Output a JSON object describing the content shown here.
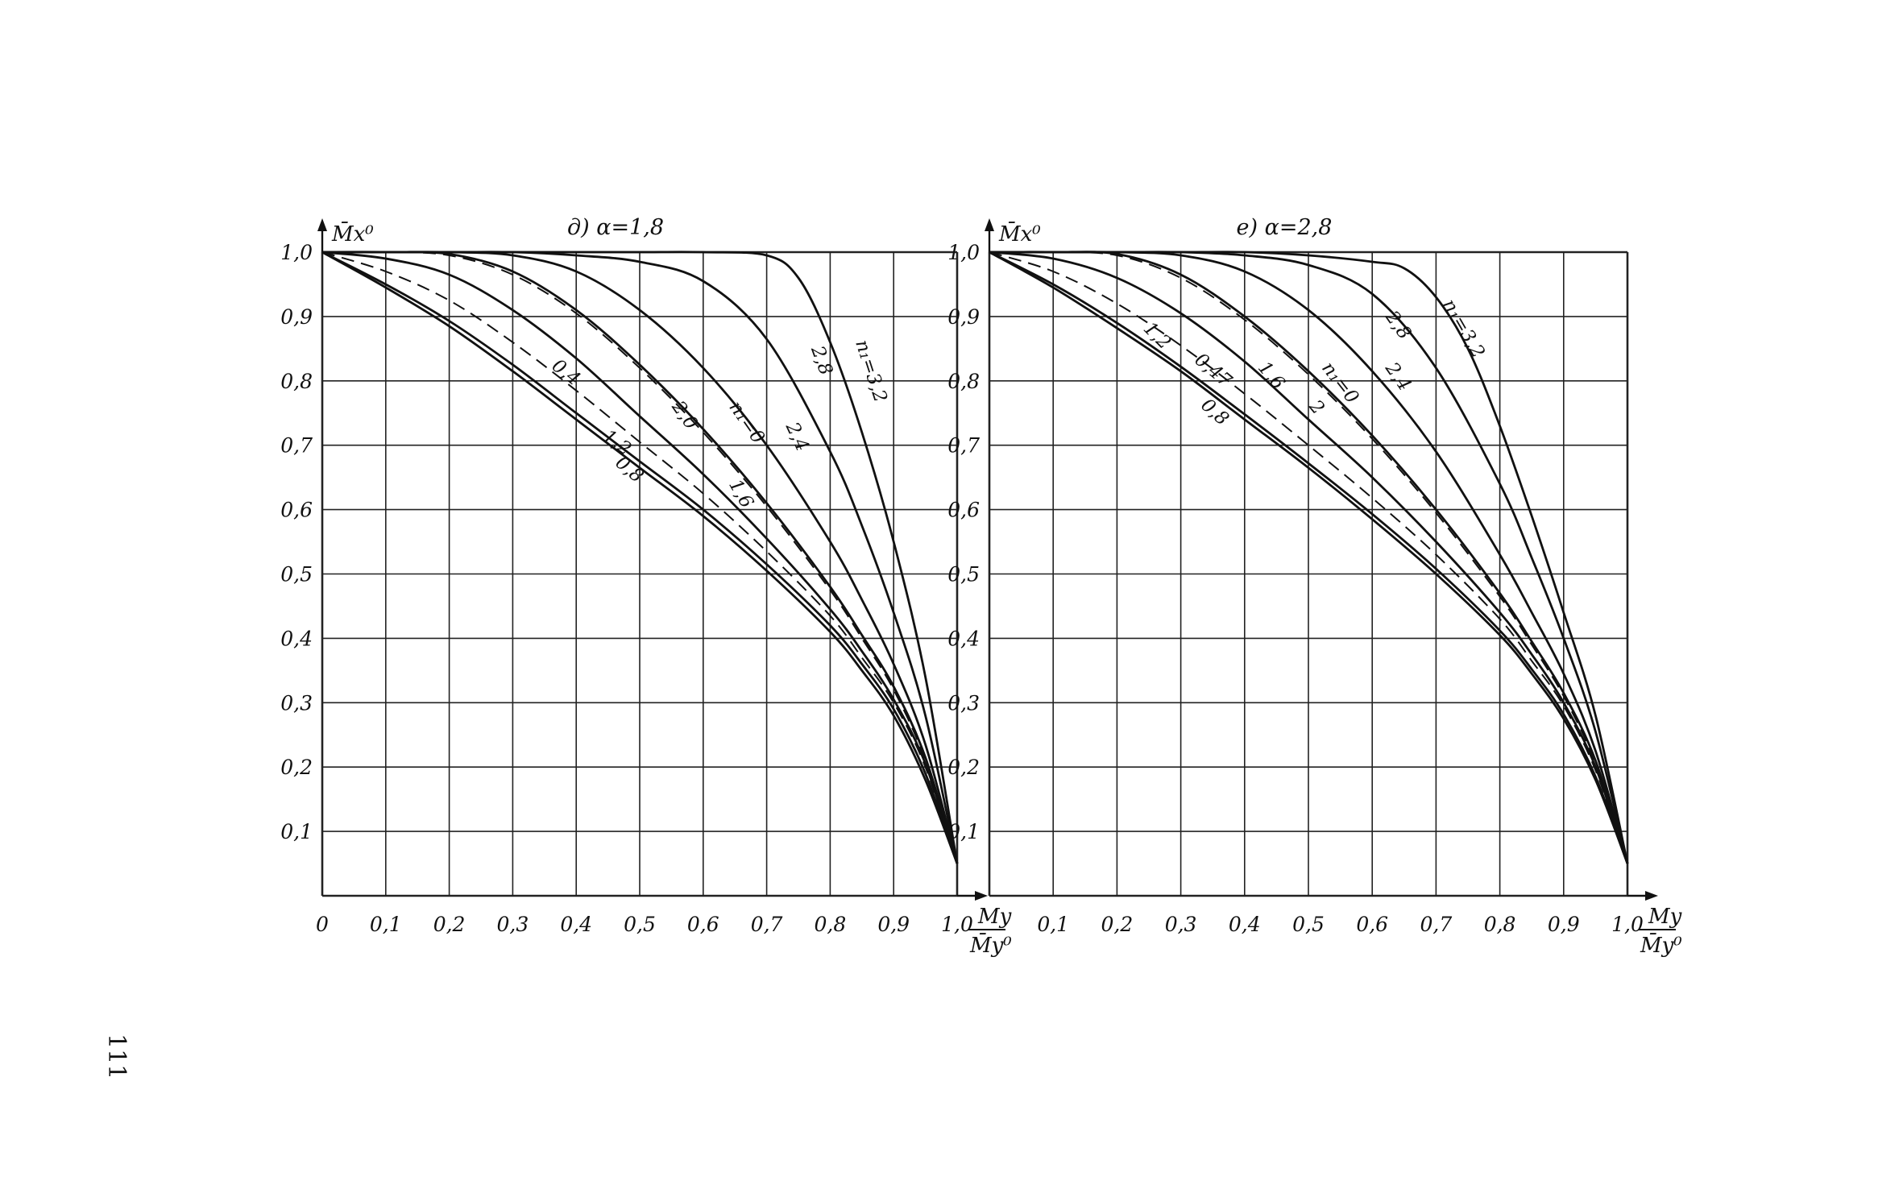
{
  "page_number": "111",
  "chart_data": [
    {
      "type": "line",
      "title": "д) α=1,8",
      "ylabel": "M̄x⁰",
      "xlabel_num": "My",
      "xlabel_den": "M̄y⁰",
      "xlim": [
        0,
        1.0
      ],
      "ylim": [
        0,
        1.0
      ],
      "grid": true,
      "x_ticks": [
        "0",
        "0,1",
        "0,2",
        "0,3",
        "0,4",
        "0,5",
        "0,6",
        "0,7",
        "0,8",
        "0,9",
        "1,0"
      ],
      "y_ticks": [
        "1,0",
        "0,9",
        "0,8",
        "0,7",
        "0,6",
        "0,5",
        "0,4",
        "0,3",
        "0,2",
        "0,1"
      ],
      "series": [
        {
          "name": "0,8",
          "dashed": false,
          "x": [
            0,
            0.1,
            0.2,
            0.3,
            0.4,
            0.5,
            0.6,
            0.7,
            0.8,
            0.85,
            0.9,
            0.95,
            1.0
          ],
          "y": [
            1.0,
            0.945,
            0.885,
            0.815,
            0.74,
            0.665,
            0.59,
            0.505,
            0.41,
            0.35,
            0.28,
            0.18,
            0.05
          ]
        },
        {
          "name": "1,2",
          "dashed": false,
          "x": [
            0,
            0.1,
            0.2,
            0.3,
            0.4,
            0.5,
            0.6,
            0.7,
            0.8,
            0.85,
            0.9,
            0.95,
            1.0
          ],
          "y": [
            1.0,
            0.95,
            0.893,
            0.825,
            0.75,
            0.675,
            0.6,
            0.515,
            0.42,
            0.36,
            0.29,
            0.19,
            0.05
          ]
        },
        {
          "name": "0,4",
          "dashed": true,
          "x": [
            0,
            0.1,
            0.2,
            0.3,
            0.4,
            0.5,
            0.6,
            0.7,
            0.8,
            0.85,
            0.9,
            0.95,
            1.0
          ],
          "y": [
            1.0,
            0.97,
            0.925,
            0.86,
            0.785,
            0.705,
            0.625,
            0.535,
            0.435,
            0.37,
            0.3,
            0.2,
            0.05
          ]
        },
        {
          "name": "1,6",
          "dashed": false,
          "x": [
            0,
            0.1,
            0.2,
            0.3,
            0.4,
            0.5,
            0.6,
            0.7,
            0.8,
            0.85,
            0.9,
            0.95,
            1.0
          ],
          "y": [
            1.0,
            0.99,
            0.965,
            0.91,
            0.835,
            0.745,
            0.655,
            0.555,
            0.445,
            0.38,
            0.305,
            0.205,
            0.05
          ]
        },
        {
          "name": "2,0",
          "dashed": true,
          "x": [
            0,
            0.1,
            0.2,
            0.3,
            0.4,
            0.5,
            0.6,
            0.7,
            0.8,
            0.85,
            0.9,
            0.95,
            1.0
          ],
          "y": [
            1.0,
            1.0,
            0.995,
            0.965,
            0.905,
            0.82,
            0.72,
            0.605,
            0.475,
            0.4,
            0.32,
            0.21,
            0.05
          ]
        },
        {
          "name": "n₁=0",
          "dashed": false,
          "x": [
            0,
            0.1,
            0.2,
            0.3,
            0.4,
            0.5,
            0.6,
            0.7,
            0.8,
            0.85,
            0.9,
            0.95,
            1.0
          ],
          "y": [
            1.0,
            1.0,
            0.997,
            0.97,
            0.91,
            0.825,
            0.725,
            0.61,
            0.48,
            0.405,
            0.325,
            0.215,
            0.05
          ]
        },
        {
          "name": "2,4",
          "dashed": false,
          "x": [
            0,
            0.1,
            0.2,
            0.3,
            0.4,
            0.5,
            0.6,
            0.7,
            0.8,
            0.85,
            0.9,
            0.95,
            1.0
          ],
          "y": [
            1.0,
            1.0,
            1.0,
            0.995,
            0.97,
            0.91,
            0.82,
            0.7,
            0.55,
            0.46,
            0.36,
            0.235,
            0.05
          ]
        },
        {
          "name": "2,8",
          "dashed": false,
          "x": [
            0,
            0.1,
            0.2,
            0.3,
            0.4,
            0.5,
            0.6,
            0.7,
            0.8,
            0.85,
            0.9,
            0.95,
            1.0
          ],
          "y": [
            1.0,
            1.0,
            1.0,
            1.0,
            0.995,
            0.985,
            0.955,
            0.865,
            0.69,
            0.575,
            0.44,
            0.28,
            0.05
          ]
        },
        {
          "name": "n₁=3,2",
          "dashed": false,
          "x": [
            0,
            0.1,
            0.2,
            0.3,
            0.4,
            0.5,
            0.6,
            0.7,
            0.75,
            0.8,
            0.85,
            0.9,
            0.95,
            1.0
          ],
          "y": [
            1.0,
            1.0,
            1.0,
            1.0,
            1.0,
            1.0,
            1.0,
            0.995,
            0.96,
            0.86,
            0.72,
            0.55,
            0.34,
            0.05
          ]
        }
      ],
      "annotations": [
        "0,4",
        "0,8",
        "1,2",
        "1,6",
        "2,0",
        "n₁=0",
        "2,4",
        "2,8",
        "n₁=3,2"
      ]
    },
    {
      "type": "line",
      "title": "е) α=2,8",
      "ylabel": "M̄x⁰",
      "xlabel_num": "My",
      "xlabel_den": "M̄y⁰",
      "xlim": [
        0,
        1.0
      ],
      "ylim": [
        0,
        1.0
      ],
      "grid": true,
      "x_ticks": [
        "0,1",
        "0,2",
        "0,3",
        "0,4",
        "0,5",
        "0,6",
        "0,7",
        "0,8",
        "0,9",
        "1,0"
      ],
      "y_ticks": [
        "1,0",
        "0,9",
        "0,8",
        "0,7",
        "0,6",
        "0,5",
        "0,4",
        "0,3",
        "0,2",
        "0,1"
      ],
      "series": [
        {
          "name": "0,8",
          "dashed": false,
          "x": [
            0,
            0.1,
            0.2,
            0.3,
            0.4,
            0.5,
            0.6,
            0.7,
            0.8,
            0.85,
            0.9,
            0.95,
            1.0
          ],
          "y": [
            1.0,
            0.945,
            0.882,
            0.815,
            0.74,
            0.665,
            0.585,
            0.5,
            0.405,
            0.345,
            0.275,
            0.18,
            0.05
          ]
        },
        {
          "name": "1,2",
          "dashed": false,
          "x": [
            0,
            0.1,
            0.2,
            0.3,
            0.4,
            0.5,
            0.6,
            0.7,
            0.8,
            0.85,
            0.9,
            0.95,
            1.0
          ],
          "y": [
            1.0,
            0.95,
            0.89,
            0.822,
            0.748,
            0.672,
            0.593,
            0.508,
            0.412,
            0.352,
            0.282,
            0.185,
            0.05
          ]
        },
        {
          "name": "0,47",
          "dashed": true,
          "x": [
            0,
            0.1,
            0.2,
            0.3,
            0.4,
            0.5,
            0.6,
            0.7,
            0.8,
            0.85,
            0.9,
            0.95,
            1.0
          ],
          "y": [
            1.0,
            0.97,
            0.92,
            0.855,
            0.78,
            0.7,
            0.618,
            0.53,
            0.43,
            0.365,
            0.295,
            0.195,
            0.05
          ]
        },
        {
          "name": "1,6",
          "dashed": false,
          "x": [
            0,
            0.1,
            0.2,
            0.3,
            0.4,
            0.5,
            0.6,
            0.7,
            0.8,
            0.85,
            0.9,
            0.95,
            1.0
          ],
          "y": [
            1.0,
            0.99,
            0.96,
            0.905,
            0.83,
            0.74,
            0.65,
            0.55,
            0.44,
            0.375,
            0.3,
            0.2,
            0.05
          ]
        },
        {
          "name": "2",
          "dashed": true,
          "x": [
            0,
            0.1,
            0.2,
            0.3,
            0.4,
            0.5,
            0.6,
            0.7,
            0.8,
            0.85,
            0.9,
            0.95,
            1.0
          ],
          "y": [
            1.0,
            1.0,
            0.995,
            0.96,
            0.895,
            0.81,
            0.71,
            0.595,
            0.465,
            0.39,
            0.31,
            0.205,
            0.05
          ]
        },
        {
          "name": "n₁=0",
          "dashed": false,
          "x": [
            0,
            0.1,
            0.2,
            0.3,
            0.4,
            0.5,
            0.6,
            0.7,
            0.8,
            0.85,
            0.9,
            0.95,
            1.0
          ],
          "y": [
            1.0,
            1.0,
            0.997,
            0.965,
            0.9,
            0.815,
            0.715,
            0.6,
            0.47,
            0.395,
            0.315,
            0.21,
            0.05
          ]
        },
        {
          "name": "2,4",
          "dashed": false,
          "x": [
            0,
            0.1,
            0.2,
            0.3,
            0.4,
            0.5,
            0.6,
            0.7,
            0.8,
            0.85,
            0.9,
            0.95,
            1.0
          ],
          "y": [
            1.0,
            1.0,
            1.0,
            0.995,
            0.97,
            0.91,
            0.815,
            0.69,
            0.53,
            0.44,
            0.345,
            0.225,
            0.05
          ]
        },
        {
          "name": "2,8",
          "dashed": false,
          "x": [
            0,
            0.1,
            0.2,
            0.3,
            0.4,
            0.5,
            0.6,
            0.7,
            0.8,
            0.85,
            0.9,
            0.95,
            1.0
          ],
          "y": [
            1.0,
            1.0,
            1.0,
            1.0,
            0.995,
            0.98,
            0.935,
            0.82,
            0.64,
            0.525,
            0.4,
            0.255,
            0.05
          ]
        },
        {
          "name": "n₁=3,2",
          "dashed": false,
          "x": [
            0,
            0.1,
            0.2,
            0.3,
            0.4,
            0.5,
            0.6,
            0.65,
            0.7,
            0.75,
            0.8,
            0.85,
            0.9,
            0.95,
            1.0
          ],
          "y": [
            1.0,
            1.0,
            1.0,
            1.0,
            1.0,
            0.995,
            0.985,
            0.975,
            0.93,
            0.85,
            0.73,
            0.59,
            0.44,
            0.28,
            0.05
          ]
        }
      ],
      "annotations": [
        "1,2",
        "0,47",
        "0,8",
        "1,6",
        "2",
        "n₁=0",
        "2,4",
        "2,8",
        "n₁=3,2"
      ]
    }
  ]
}
